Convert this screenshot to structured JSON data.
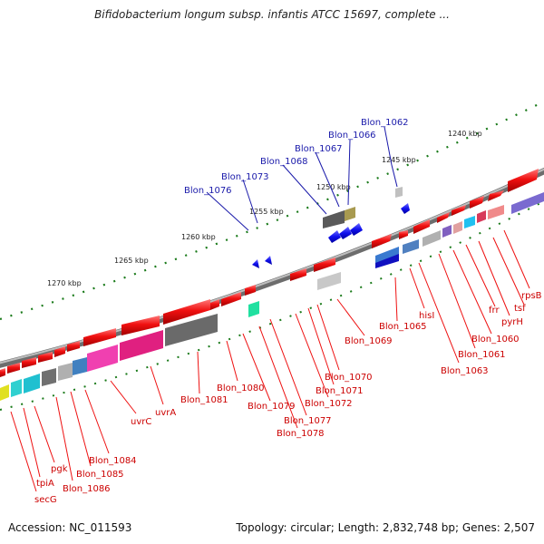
{
  "title": "Bifidobacterium longum subsp. infantis ATCC 15697, complete ...",
  "footer": {
    "accession": "Accession: NC_011593",
    "summary": "Topology: circular; Length: 2,832,748 bp; Genes: 2,507"
  },
  "colors": {
    "backbone": "#8a8a8a",
    "tick": "#1a7a1a",
    "forward_gene": "#ee1111",
    "reverse_gene": "#1111ee",
    "red_label": "#cc0000",
    "blue_label": "#1a1aaa"
  },
  "scale_labels": [
    "1240 kbp",
    "1245 kbp",
    "1250 kbp",
    "1255 kbp",
    "1260 kbp",
    "1265 kbp",
    "1270 kbp"
  ],
  "blue_labels": [
    "Blon_1062",
    "Blon_1066",
    "Blon_1067",
    "Blon_1068",
    "Blon_1073",
    "Blon_1076"
  ],
  "red_labels": [
    "rpsB",
    "tsf",
    "pyrH",
    "frr",
    "Blon_1060",
    "Blon_1061",
    "Blon_1063",
    "hisI",
    "Blon_1065",
    "Blon_1069",
    "Blon_1070",
    "Blon_1071",
    "Blon_1072",
    "Blon_1077",
    "Blon_1078",
    "Blon_1079",
    "Blon_1080",
    "Blon_1081",
    "uvrA",
    "uvrC",
    "Blon_1084",
    "Blon_1085",
    "Blon_1086",
    "pgk",
    "tpiA",
    "secG"
  ]
}
